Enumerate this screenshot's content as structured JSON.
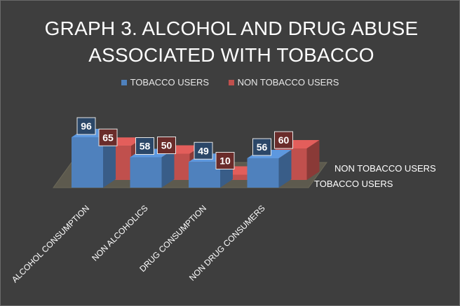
{
  "title": {
    "line1": "GRAPH 3. ALCOHOL AND DRUG ABUSE",
    "line2": "ASSOCIATED WITH TOBACCO"
  },
  "legend": [
    {
      "label": "TOBACCO USERS",
      "color": "#4f81bd"
    },
    {
      "label": "NON TOBACCO USERS",
      "color": "#c0504d"
    }
  ],
  "depth_labels": [
    "NON TOBACCO USERS",
    "TOBACCO USERS"
  ],
  "chart_data": {
    "type": "bar",
    "title": "GRAPH 3. ALCOHOL AND DRUG ABUSE ASSOCIATED WITH TOBACCO",
    "categories": [
      "ALCOHOL CONSUMPTION",
      "NON ALCOHOLICS",
      "DRUG CONSUMPTION",
      "NON DRUG CONSUMERS"
    ],
    "series": [
      {
        "name": "TOBACCO USERS",
        "values": [
          96,
          58,
          49,
          56
        ],
        "color": "#4f81bd"
      },
      {
        "name": "NON TOBACCO USERS",
        "values": [
          65,
          50,
          10,
          60
        ],
        "color": "#c0504d"
      }
    ],
    "ylim": [
      0,
      100
    ],
    "legend_position": "top",
    "grid": false,
    "style": "3d-column"
  }
}
